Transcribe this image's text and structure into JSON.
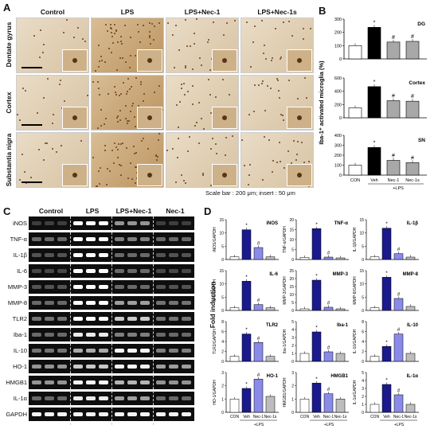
{
  "panels": {
    "A": "A",
    "B": "B",
    "C": "C",
    "D": "D"
  },
  "panelA": {
    "columns": [
      "Control",
      "LPS",
      "LPS+Nec-1",
      "LPS+Nec-1s"
    ],
    "rows": [
      "Dentate gyrus",
      "Cortex",
      "Substantia nigra"
    ],
    "caption": "Scale bar : 200 μm; insert : 50 μm"
  },
  "panelB": {
    "ylabel": "Iba-1⁺ activated microglia (%)",
    "xgroup": "+LPS",
    "charts": [
      {
        "region": "DG",
        "ymax": 300,
        "ticks": [
          0,
          100,
          200,
          300
        ],
        "values": [
          100,
          238,
          127,
          132
        ],
        "markers": [
          "",
          "*",
          "#",
          "#"
        ]
      },
      {
        "region": "Cortex",
        "ymax": 600,
        "ticks": [
          0,
          200,
          400,
          600
        ],
        "values": [
          150,
          470,
          258,
          250
        ],
        "markers": [
          "",
          "*",
          "#",
          "#"
        ]
      },
      {
        "region": "SN",
        "ymax": 400,
        "ticks": [
          0,
          100,
          200,
          300,
          400
        ],
        "values": [
          100,
          278,
          148,
          125
        ],
        "markers": [
          "",
          "*",
          "#",
          "#"
        ]
      }
    ],
    "categories": [
      "CON",
      "Veh",
      "Nec-1",
      "Nec-1s"
    ]
  },
  "panelC": {
    "headers": [
      "Control",
      "LPS",
      "LPS+Nec-1",
      "Nec-1"
    ],
    "genes": [
      "iNOS",
      "TNF-α",
      "IL-1β",
      "IL-6",
      "MMP-3",
      "MMP-8",
      "TLR2",
      "Iba-1",
      "IL-10",
      "HO-1",
      "HMGB1",
      "IL-1α",
      "GAPDH"
    ]
  },
  "panelD": {
    "ylabel": "Fold induction",
    "xgroup": "+LPS",
    "categories": [
      "CON",
      "Veh",
      "Nec-1",
      "Nec-1s"
    ],
    "chart_data": [
      {
        "type": "bar",
        "title": "iNOS",
        "ylabel": "iNOS/GAPDH",
        "ylim": [
          0,
          15
        ],
        "ticks": [
          0,
          5,
          10,
          15
        ],
        "values": [
          1,
          11.2,
          4.5,
          1
        ],
        "markers": [
          "",
          "*",
          "#",
          ""
        ]
      },
      {
        "type": "bar",
        "title": "TNF-α",
        "ylabel": "TNF-α/GAPDH",
        "ylim": [
          0,
          20
        ],
        "ticks": [
          0,
          5,
          10,
          15,
          20
        ],
        "values": [
          1,
          15.5,
          1.2,
          0.8
        ],
        "markers": [
          "",
          "*",
          "#",
          ""
        ]
      },
      {
        "type": "bar",
        "title": "IL-1β",
        "ylabel": "IL-1β/GAPDH",
        "ylim": [
          0,
          15
        ],
        "ticks": [
          0,
          5,
          10,
          15
        ],
        "values": [
          1,
          11.8,
          2.2,
          0.9
        ],
        "markers": [
          "",
          "*",
          "#",
          ""
        ]
      },
      {
        "type": "bar",
        "title": "IL-6",
        "ylabel": "IL-6/GAPDH",
        "ylim": [
          0,
          15
        ],
        "ticks": [
          0,
          5,
          10,
          15
        ],
        "values": [
          1,
          11,
          2.2,
          1
        ],
        "markers": [
          "",
          "*",
          "#",
          ""
        ]
      },
      {
        "type": "bar",
        "title": "MMP-3",
        "ylabel": "MMP-3/GAPDH",
        "ylim": [
          0,
          25
        ],
        "ticks": [
          0,
          5,
          10,
          15,
          20,
          25
        ],
        "values": [
          1,
          19,
          2,
          1
        ],
        "markers": [
          "",
          "*",
          "#",
          ""
        ]
      },
      {
        "type": "bar",
        "title": "MMP-8",
        "ylabel": "MMP-8/GAPDH",
        "ylim": [
          0,
          15
        ],
        "ticks": [
          0,
          5,
          10,
          15
        ],
        "values": [
          1,
          12.5,
          4.5,
          1.5
        ],
        "markers": [
          "",
          "*",
          "#",
          ""
        ]
      },
      {
        "type": "bar",
        "title": "TLR2",
        "ylabel": "TLR2/GAPDH",
        "ylim": [
          0,
          8
        ],
        "ticks": [
          0,
          2,
          4,
          6,
          8
        ],
        "values": [
          1,
          5.5,
          3.8,
          1
        ],
        "markers": [
          "",
          "*",
          "#",
          ""
        ]
      },
      {
        "type": "bar",
        "title": "Iba-1",
        "ylabel": "Iba-1/GAPDH",
        "ylim": [
          0,
          5
        ],
        "ticks": [
          0,
          1,
          2,
          3,
          4,
          5
        ],
        "values": [
          1,
          3.7,
          1.2,
          1
        ],
        "markers": [
          "",
          "*",
          "#",
          ""
        ]
      },
      {
        "type": "bar",
        "title": "IL-10",
        "ylabel": "IL-10/GAPDH",
        "ylim": [
          0,
          8
        ],
        "ticks": [
          0,
          2,
          4,
          6,
          8
        ],
        "values": [
          1,
          3,
          5.5,
          1.6
        ],
        "markers": [
          "",
          "*",
          "#",
          ""
        ]
      },
      {
        "type": "bar",
        "title": "HO-1",
        "ylabel": "HO-1/GAPDH",
        "ylim": [
          0,
          3
        ],
        "ticks": [
          0,
          1,
          2,
          3
        ],
        "values": [
          1,
          1.8,
          2.5,
          1.2
        ],
        "markers": [
          "",
          "*",
          "#",
          ""
        ]
      },
      {
        "type": "bar",
        "title": "HMGB1",
        "ylabel": "HMGB1/GAPDH",
        "ylim": [
          0,
          3
        ],
        "ticks": [
          0,
          1,
          2,
          3
        ],
        "values": [
          1,
          2.2,
          1.4,
          1
        ],
        "markers": [
          "",
          "*",
          "#",
          ""
        ]
      },
      {
        "type": "bar",
        "title": "IL-1α",
        "ylabel": "IL-1α/GAPDH",
        "ylim": [
          0,
          5
        ],
        "ticks": [
          0,
          1,
          2,
          3,
          4,
          5
        ],
        "values": [
          1,
          3.5,
          2.2,
          1
        ],
        "markers": [
          "",
          "*",
          "#",
          ""
        ]
      }
    ]
  },
  "colors": {
    "con": "#ffffff",
    "veh": "#1a1a8c",
    "nec1": "#8a8ae8",
    "nec1s": "#bdbdbd",
    "panelBveh": "#000000",
    "panelBnec": "#a8a8a8"
  }
}
